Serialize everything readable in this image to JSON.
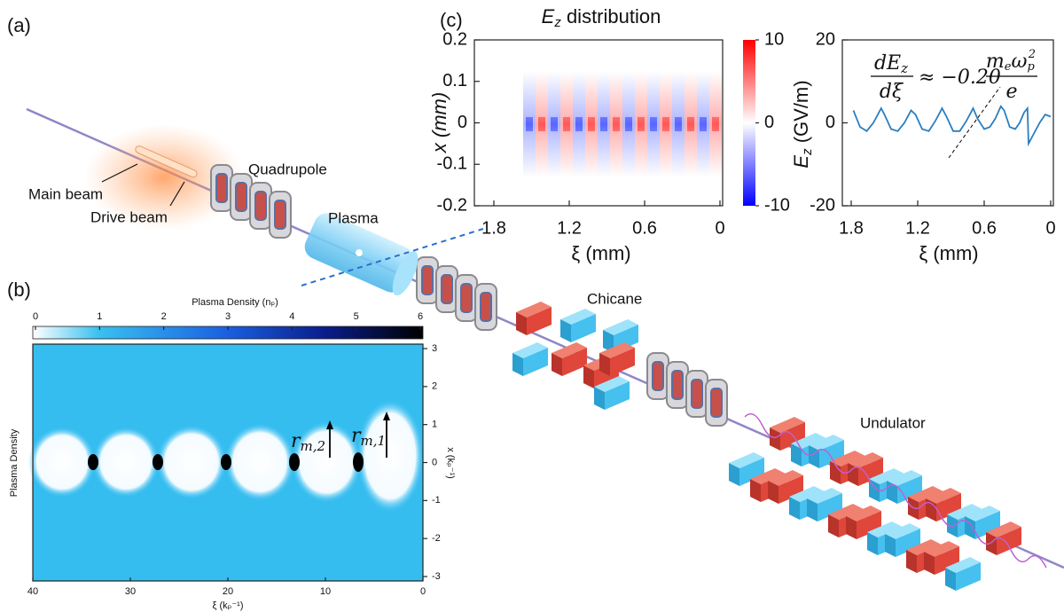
{
  "panel_labels": {
    "a": "(a)",
    "b": "(b)",
    "c": "(c)"
  },
  "schematic": {
    "main_beam": "Main beam",
    "drive_beam": "Drive beam",
    "quadrupole": "Quadrupole",
    "plasma": "Plasma",
    "chicane": "Chicane",
    "undulator": "Undulator"
  },
  "density_map": {
    "colorbar_title": "Plasma  Density (nₚ)",
    "colorbar_lim": [
      0,
      6
    ],
    "colorbar_ticks": [
      0,
      1,
      2,
      3,
      4,
      5,
      6
    ],
    "xlabel": "ξ (kₚ⁻¹)",
    "ylabel": "x (kₚ⁻¹)",
    "side_label": "Plasma Density",
    "xlim": [
      40,
      0
    ],
    "xticks": [
      40,
      30,
      20,
      10,
      0
    ],
    "ylim": [
      -3,
      3
    ],
    "yticks": [
      -3,
      -2,
      -1,
      0,
      1,
      2,
      3
    ],
    "annotations": [
      {
        "base": "r",
        "sub": "m,2"
      },
      {
        "base": "r",
        "sub": "m,1"
      }
    ]
  },
  "ez_map": {
    "title_base": "E",
    "title_sub": "z",
    "title_rest": " distribution",
    "xlabel": "ξ (mm)",
    "ylabel": "x (mm)",
    "xlim": [
      1.8,
      0
    ],
    "xticks": [
      1.8,
      1.2,
      0.6,
      0
    ],
    "ylim": [
      -0.2,
      0.2
    ],
    "yticks": [
      -0.2,
      -0.1,
      0,
      0.1,
      0.2
    ],
    "colorbar_lim": [
      -10,
      10
    ],
    "colorbar_ticks": [
      -10,
      0,
      10
    ]
  },
  "ez_line": {
    "type": "line",
    "xlabel": "ξ (mm)",
    "ylabel_base": "E",
    "ylabel_sub": "z",
    "ylabel_rest": " (GV/m)",
    "xlim": [
      1.8,
      0
    ],
    "xticks": [
      1.8,
      1.2,
      0.6,
      0
    ],
    "ylim": [
      -20,
      20
    ],
    "yticks": [
      -20,
      0,
      20
    ],
    "color": "#2a7fc1",
    "x": [
      1.78,
      1.72,
      1.66,
      1.6,
      1.53,
      1.5,
      1.44,
      1.38,
      1.32,
      1.26,
      1.22,
      1.16,
      1.1,
      1.04,
      0.98,
      0.94,
      0.88,
      0.82,
      0.76,
      0.7,
      0.66,
      0.6,
      0.55,
      0.5,
      0.45,
      0.42,
      0.37,
      0.32,
      0.28,
      0.24,
      0.21,
      0.2,
      0.16,
      0.1,
      0.05,
      0
    ],
    "values": [
      3,
      -1,
      -2,
      0,
      3.5,
      2,
      -1.5,
      -2,
      0,
      3,
      2,
      -1.5,
      -2,
      0.5,
      3.5,
      1.5,
      -2,
      -2,
      0.5,
      3.5,
      1,
      -1.5,
      -1,
      1,
      4,
      3,
      -1,
      -1.5,
      0,
      2.5,
      3.5,
      -5,
      -3,
      0,
      2,
      1.5
    ],
    "formula": {
      "lhs_num": "dE",
      "lhs_num_sub": "z",
      "lhs_den": "dξ",
      "middle": "≈ −0.20",
      "m": "m",
      "m_sub": "e",
      "w": "ω",
      "w_sub": "p",
      "w_sup": "2",
      "den": "e"
    }
  }
}
